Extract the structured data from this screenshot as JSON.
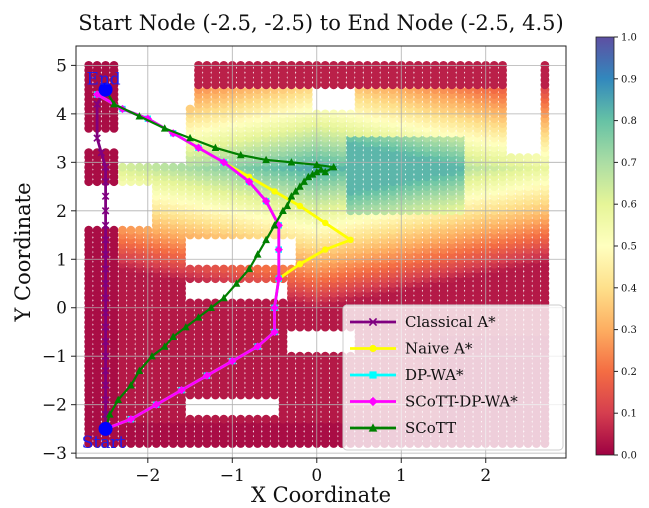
{
  "chart_data": {
    "type": "scatter",
    "title": "Start Node (-2.5, -2.5) to End Node (-2.5, 4.5)",
    "xlabel": "X Coordinate",
    "ylabel": "Y Coordinate",
    "xlim": [
      -2.85,
      2.95
    ],
    "ylim": [
      -3.1,
      5.4
    ],
    "xticks": [
      -2,
      -1,
      0,
      1,
      2
    ],
    "yticks": [
      -3,
      -2,
      -1,
      0,
      1,
      2,
      3,
      4,
      5
    ],
    "xtick_labels": [
      "−2",
      "−1",
      "0",
      "1",
      "2"
    ],
    "ytick_labels": [
      "−3",
      "−2",
      "−1",
      "0",
      "1",
      "2",
      "3",
      "4",
      "5"
    ],
    "grid": true,
    "legend_position": "lower-right",
    "colormap": "Spectral",
    "colorbar": {
      "min": 0.0,
      "max": 1.0,
      "ticks": [
        "0.0",
        "0.1",
        "0.2",
        "0.3",
        "0.4",
        "0.5",
        "0.6",
        "0.7",
        "0.8",
        "0.9",
        "1.0"
      ]
    },
    "nodes": {
      "start": {
        "label": "Start",
        "x": -2.5,
        "y": -2.5,
        "color": "#0000ff"
      },
      "end": {
        "label": "End",
        "x": -2.5,
        "y": 4.5,
        "color": "#0000ff"
      }
    },
    "series": [
      {
        "name": "Classical A*",
        "color": "#800080",
        "marker": "x",
        "x": [
          -2.5,
          -2.5,
          -2.5,
          -2.5,
          -2.5,
          -2.5,
          -2.5,
          -2.5,
          -2.5,
          -2.5,
          -2.5,
          -2.5,
          -2.5,
          -2.5,
          -2.5,
          -2.5,
          -2.5,
          -2.5,
          -2.5,
          -2.55,
          -2.6,
          -2.6,
          -2.5
        ],
        "y": [
          -2.5,
          -2.2,
          -1.9,
          -1.6,
          -1.3,
          -1.0,
          -0.7,
          -0.4,
          -0.1,
          0.2,
          0.5,
          0.8,
          1.1,
          1.4,
          1.7,
          2.0,
          2.3,
          2.6,
          2.9,
          3.2,
          3.5,
          4.2,
          4.5
        ]
      },
      {
        "name": "Naive A*",
        "color": "#ffff00",
        "marker": "o",
        "x": [
          -2.5,
          -2.2,
          -1.9,
          -1.6,
          -1.3,
          -1.0,
          -0.7,
          -0.5,
          -0.5,
          -0.45,
          -0.2,
          0.1,
          0.4,
          0.1,
          -0.2,
          -0.5,
          -0.8,
          -1.1,
          -1.4,
          -1.7,
          -2.0,
          -2.3,
          -2.6,
          -2.5
        ],
        "y": [
          -2.5,
          -2.3,
          -2.0,
          -1.7,
          -1.4,
          -1.1,
          -0.8,
          -0.5,
          0.0,
          0.6,
          0.9,
          1.2,
          1.4,
          1.75,
          2.1,
          2.4,
          2.7,
          3.0,
          3.3,
          3.6,
          3.9,
          4.1,
          4.4,
          4.5
        ]
      },
      {
        "name": "DP-WA*",
        "color": "#00ffff",
        "marker": "s",
        "x": [
          -2.5,
          -2.2,
          -1.9,
          -1.6,
          -1.3,
          -1.0,
          -0.7,
          -0.5,
          -0.5,
          -0.45,
          -0.45,
          -0.45,
          -0.6,
          -0.8,
          -1.1,
          -1.4,
          -1.7,
          -2.0,
          -2.3,
          -2.6,
          -2.5
        ],
        "y": [
          -2.5,
          -2.3,
          -2.0,
          -1.7,
          -1.4,
          -1.1,
          -0.8,
          -0.5,
          0.0,
          0.6,
          1.2,
          1.7,
          2.2,
          2.6,
          3.0,
          3.3,
          3.6,
          3.9,
          4.1,
          4.4,
          4.5
        ]
      },
      {
        "name": "SCoTT-DP-WA*",
        "color": "#ff00ff",
        "marker": "D",
        "x": [
          -2.5,
          -2.2,
          -1.9,
          -1.6,
          -1.3,
          -1.0,
          -0.7,
          -0.5,
          -0.5,
          -0.45,
          -0.45,
          -0.45,
          -0.6,
          -0.8,
          -1.1,
          -1.4,
          -1.7,
          -2.0,
          -2.3,
          -2.6,
          -2.5
        ],
        "y": [
          -2.5,
          -2.3,
          -2.0,
          -1.7,
          -1.4,
          -1.1,
          -0.8,
          -0.5,
          0.0,
          0.6,
          1.2,
          1.7,
          2.2,
          2.6,
          3.0,
          3.3,
          3.6,
          3.9,
          4.1,
          4.4,
          4.5
        ]
      },
      {
        "name": "SCoTT",
        "color": "#008000",
        "marker": "^",
        "x": [
          -2.5,
          -2.45,
          -2.35,
          -2.2,
          -2.1,
          -1.95,
          -1.8,
          -1.7,
          -1.55,
          -1.4,
          -1.25,
          -1.1,
          -0.95,
          -0.8,
          -0.7,
          -0.6,
          -0.5,
          -0.4,
          -0.35,
          -0.3,
          -0.25,
          -0.2,
          -0.15,
          -0.1,
          -0.05,
          0.0,
          0.05,
          0.1,
          0.2,
          0.0,
          -0.3,
          -0.6,
          -0.9,
          -1.2,
          -1.5,
          -1.8,
          -2.1,
          -2.4,
          -2.5
        ],
        "y": [
          -2.5,
          -2.2,
          -1.9,
          -1.6,
          -1.3,
          -1.0,
          -0.8,
          -0.6,
          -0.4,
          -0.2,
          0.0,
          0.2,
          0.5,
          0.8,
          1.1,
          1.4,
          1.7,
          2.0,
          2.1,
          2.3,
          2.4,
          2.5,
          2.6,
          2.7,
          2.75,
          2.8,
          2.85,
          2.8,
          2.9,
          2.95,
          3.0,
          3.05,
          3.15,
          3.3,
          3.5,
          3.7,
          3.95,
          4.2,
          4.5
        ]
      }
    ]
  }
}
